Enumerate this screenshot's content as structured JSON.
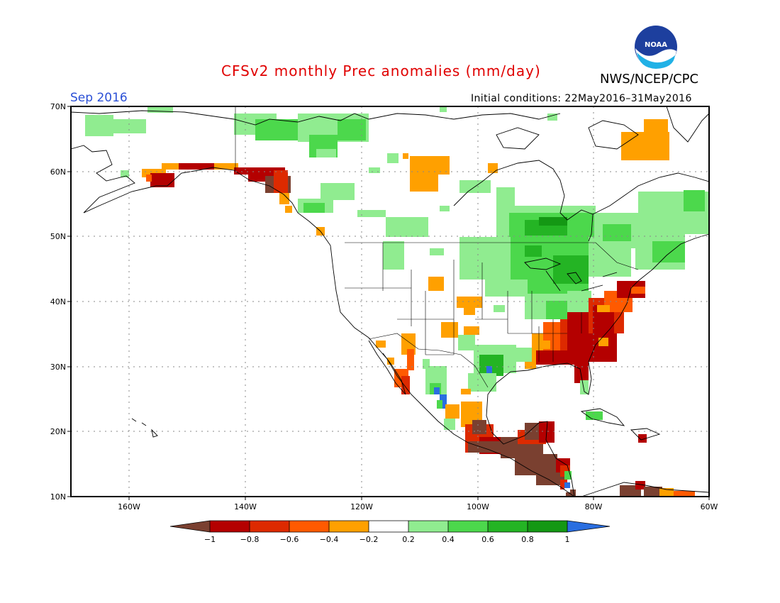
{
  "header": {
    "title": "CFSv2 monthly Prec anomalies (mm/day)",
    "organization": "NWS/NCEP/CPC",
    "logo_text": "NOAA",
    "period": "Sep 2016",
    "initial_conditions": "Initial conditions: 22May2016–31May2016"
  },
  "map": {
    "lon_labels": [
      "160W",
      "140W",
      "120W",
      "100W",
      "80W",
      "60W"
    ],
    "lat_labels": [
      "70N",
      "60N",
      "50N",
      "40N",
      "30N",
      "20N",
      "10N"
    ]
  },
  "legend": {
    "labels": [
      "−1",
      "−0.8",
      "−0.6",
      "−0.4",
      "−0.2",
      "0.2",
      "0.4",
      "0.6",
      "0.8",
      "1"
    ],
    "colors": [
      "#7a4030",
      "#b40000",
      "#dd2a00",
      "#ff5a00",
      "#ffa000",
      "#ffffff",
      "#90ec90",
      "#4cd84c",
      "#24b424",
      "#149814",
      "#2a6ee0"
    ]
  }
}
